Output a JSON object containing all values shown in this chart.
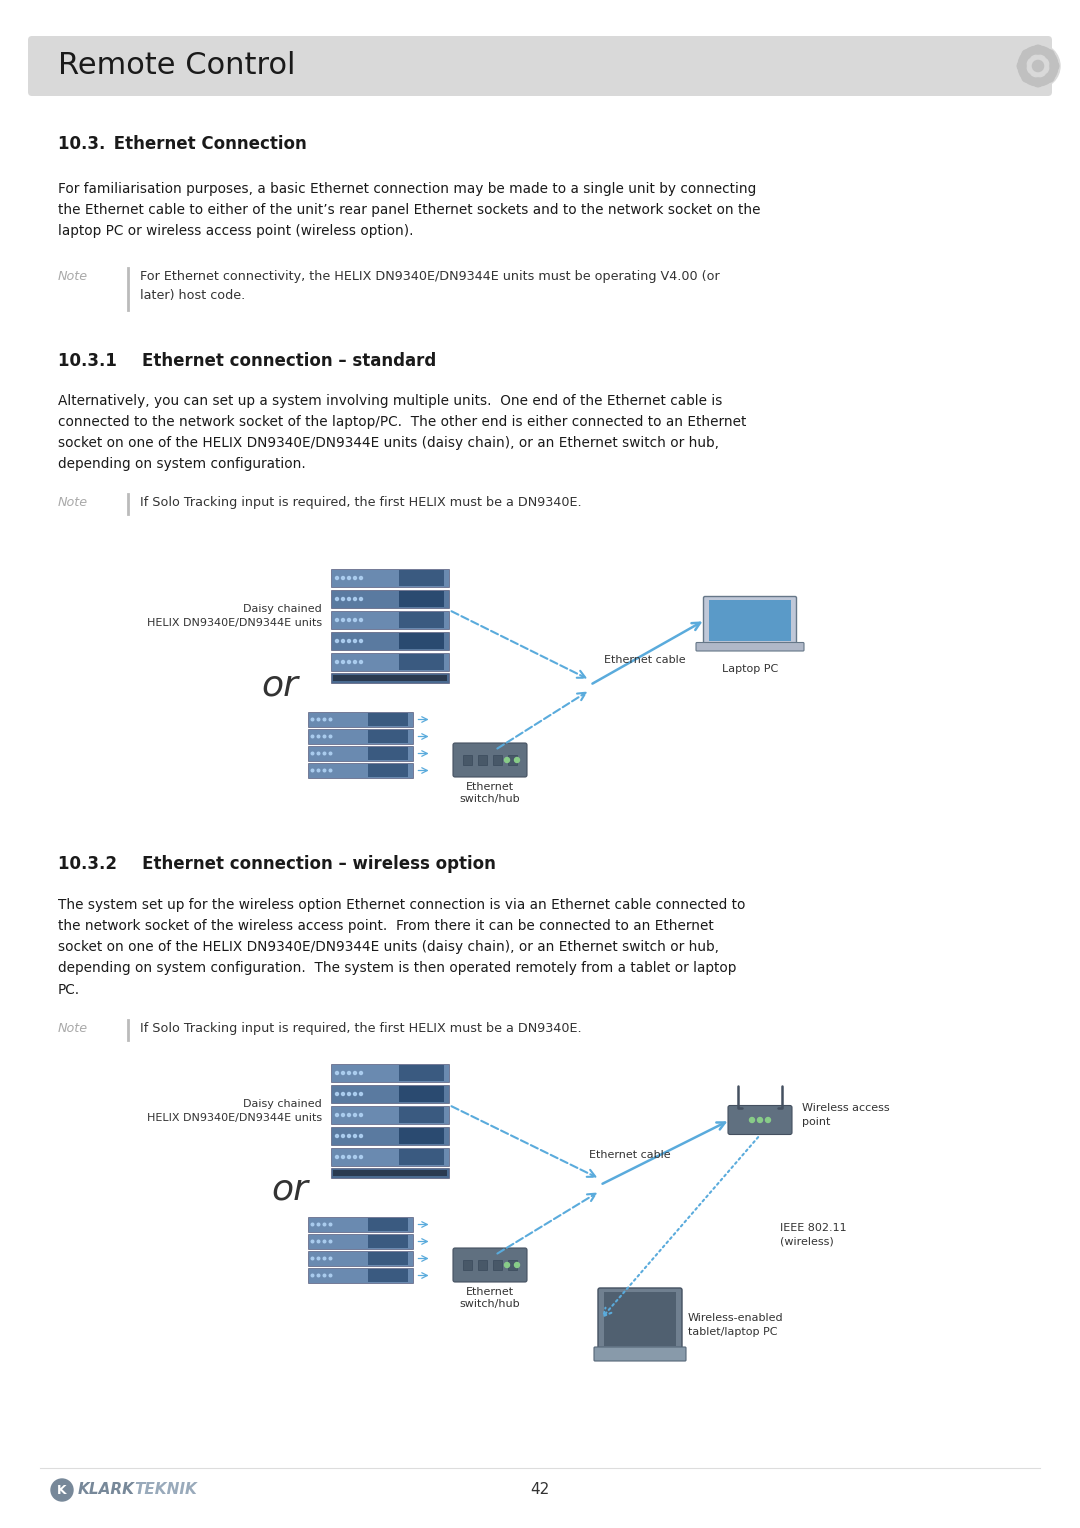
{
  "page_bg": "#ffffff",
  "header_bg": "#d9d9d9",
  "header_text": "Remote Control",
  "page_number": "42",
  "section_10_3_title": "10.3. Ethernet Connection",
  "section_10_3_body": "For familiarisation purposes, a basic Ethernet connection may be made to a single unit by connecting\nthe Ethernet cable to either of the unit’s rear panel Ethernet sockets and to the network socket on the\nlaptop PC or wireless access point (wireless option).",
  "note1_label": "Note",
  "note1_text": "For Ethernet connectivity, the HELIX DN9340E/DN9344E units must be operating V4.00 (or\nlater) host code.",
  "section_10_3_1_title": "10.3.1   Ethernet connection – standard",
  "section_10_3_1_body": "Alternatively, you can set up a system involving multiple units.  One end of the Ethernet cable is\nconnected to the network socket of the laptop/PC.  The other end is either connected to an Ethernet\nsocket on one of the HELIX DN9340E/DN9344E units (daisy chain), or an Ethernet switch or hub,\ndepending on system configuration.",
  "note2_label": "Note",
  "note2_text": "If Solo Tracking input is required, the first HELIX must be a DN9340E.",
  "diagram1_label_top": "Daisy chained\nHELIX DN9340E/DN9344E units",
  "diagram1_or": "or",
  "diagram1_ethernet_cable": "Ethernet cable",
  "diagram1_laptop": "Laptop PC",
  "diagram1_switch": "Ethernet\nswitch/hub",
  "section_10_3_2_title": "10.3.2   Ethernet connection – wireless option",
  "section_10_3_2_body": "The system set up for the wireless option Ethernet connection is via an Ethernet cable connected to\nthe network socket of the wireless access point.  From there it can be connected to an Ethernet\nsocket on one of the HELIX DN9340E/DN9344E units (daisy chain), or an Ethernet switch or hub,\ndepending on system configuration.  The system is then operated remotely from a tablet or laptop\nPC.",
  "note3_label": "Note",
  "note3_text": "If Solo Tracking input is required, the first HELIX must be a DN9340E.",
  "diagram2_label_top": "Daisy chained\nHELIX DN9340E/DN9344E units",
  "diagram2_or": "or",
  "diagram2_ethernet_cable": "Ethernet cable",
  "diagram2_wireless_ap": "Wireless access\npoint",
  "diagram2_switch": "Ethernet\nswitch/hub",
  "diagram2_ieee": "IEEE 802.11\n(wireless)",
  "diagram2_tablet": "Wireless-enabled\ntablet/laptop PC",
  "text_color": "#1a1a1a",
  "note_color": "#aaaaaa",
  "note_text_color": "#333333",
  "blue_arrow": "#5aabdc",
  "body_fontsize": 9.8,
  "header_fontsize": 22,
  "title_fontsize": 12,
  "note_fontsize": 9.2,
  "caption_fontsize": 8.0,
  "or_fontsize": 26
}
